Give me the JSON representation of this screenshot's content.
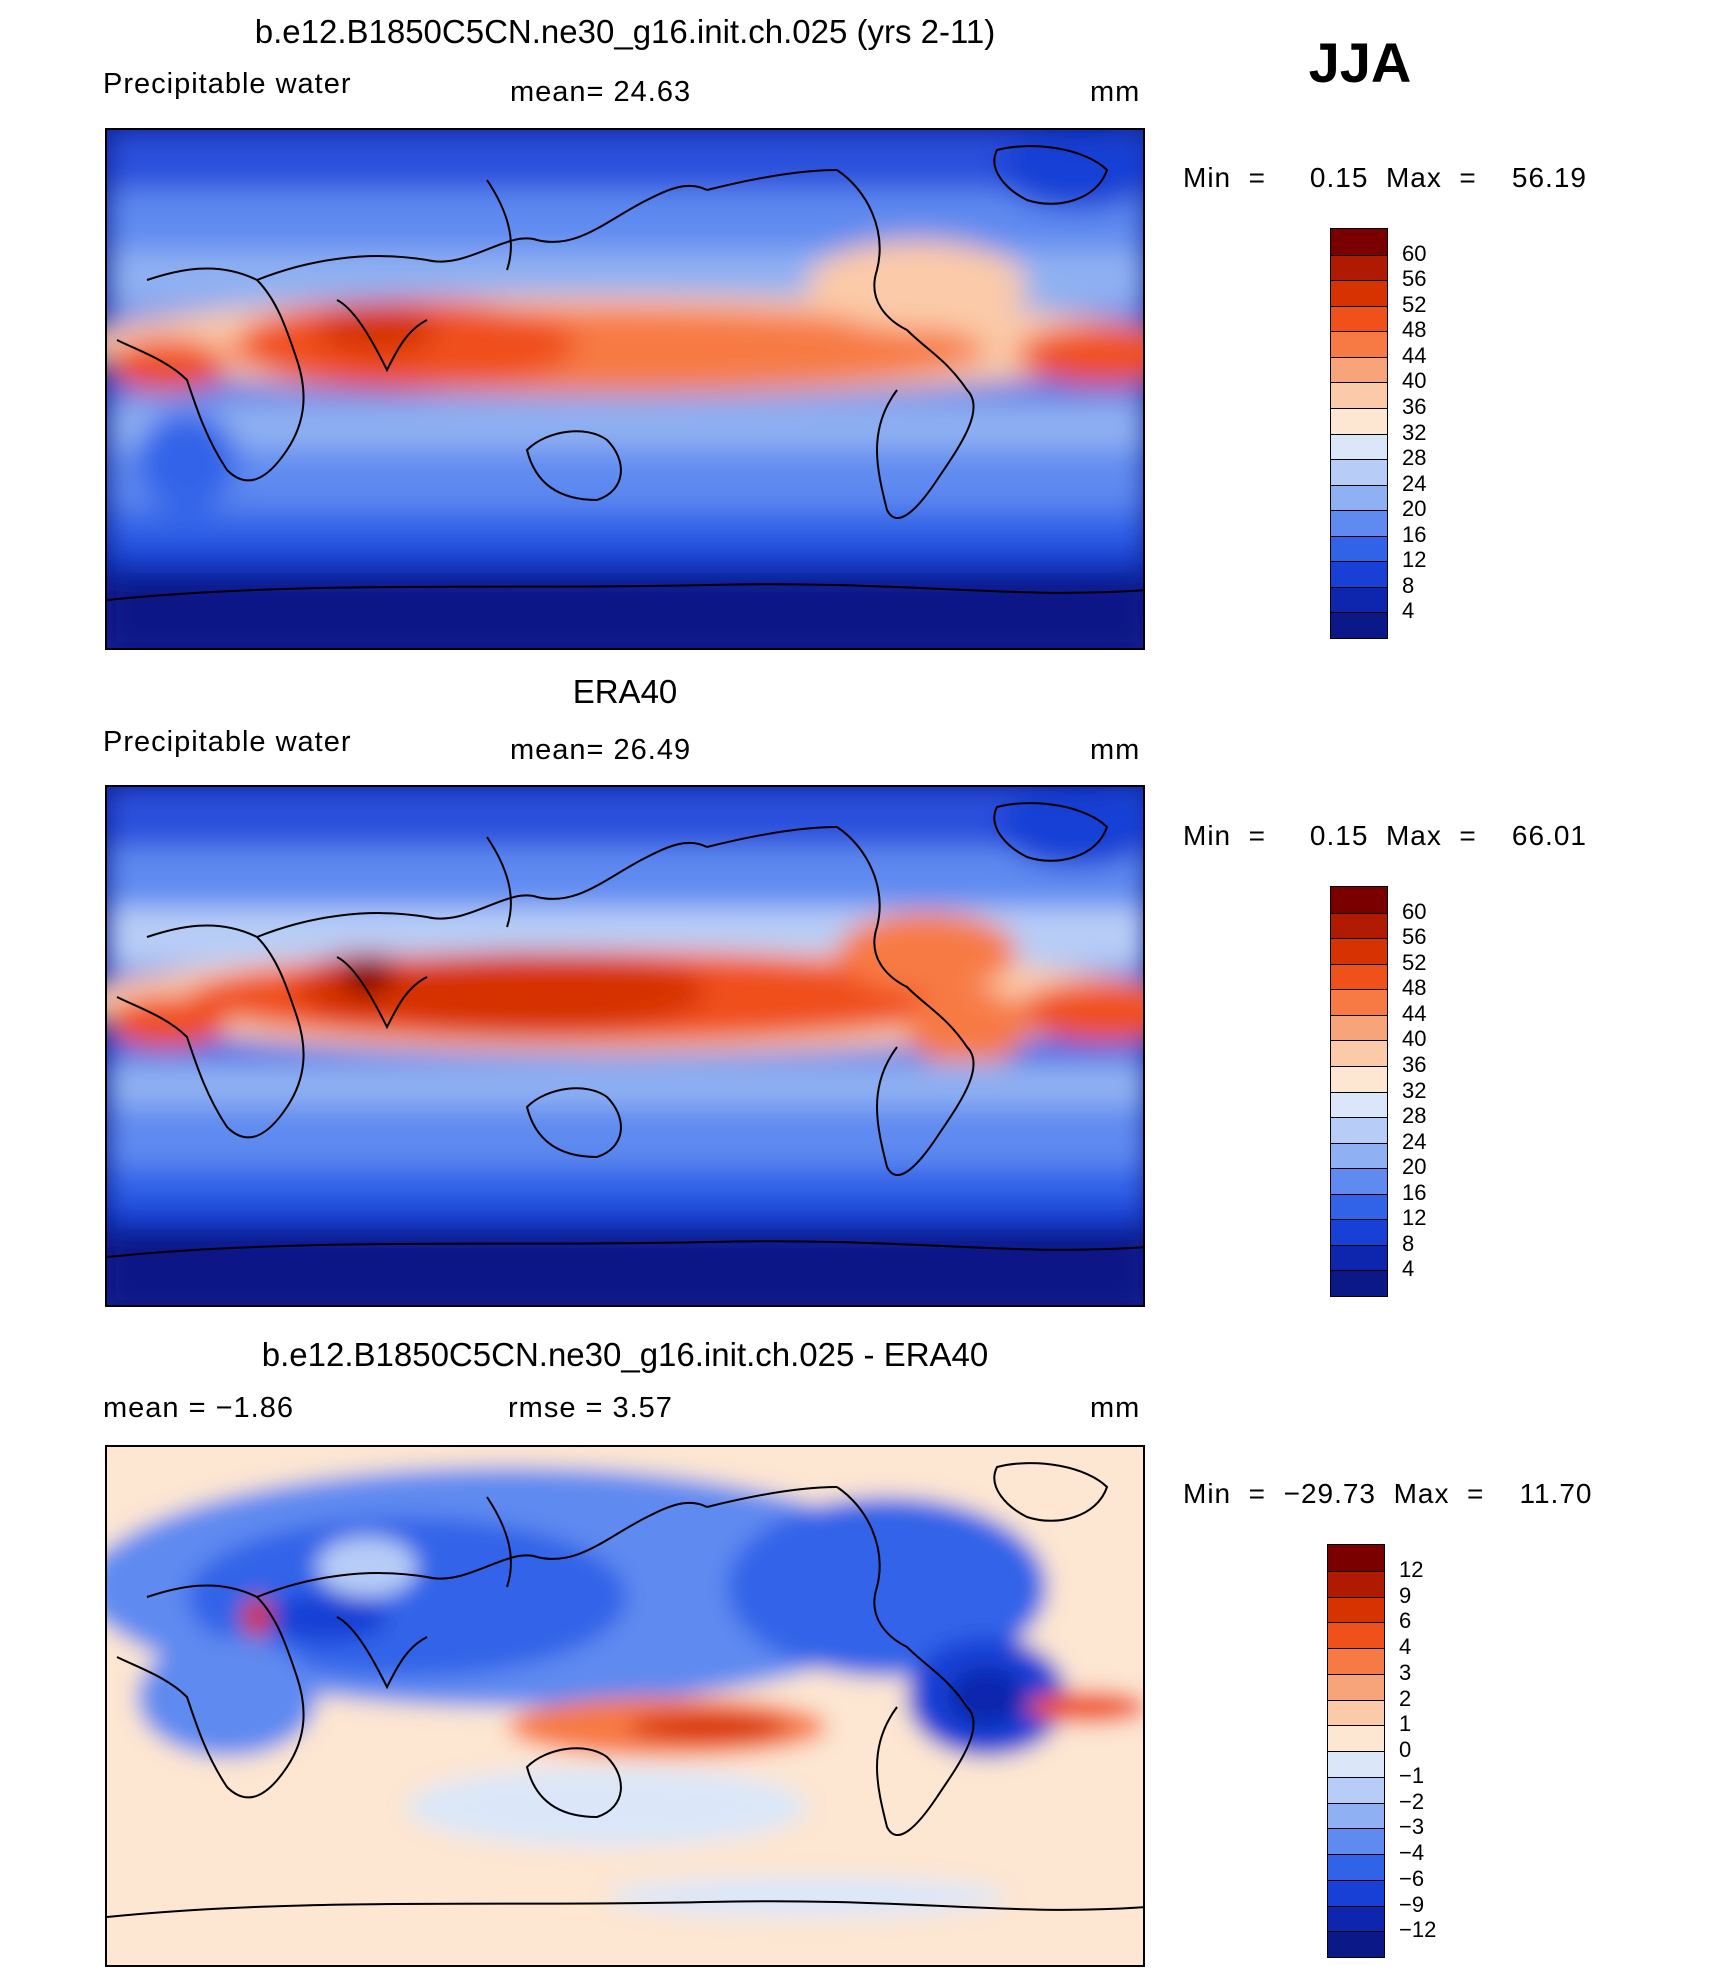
{
  "season": "JJA",
  "panels": [
    {
      "id": "model",
      "title": "b.e12.B1850C5CN.ne30_g16.init.ch.025 (yrs 2-11)",
      "left_label": "Precipitable  water",
      "center_label": "mean=   24.63",
      "units": "mm",
      "minmax": "Min  =     0.15  Max  =    56.19"
    },
    {
      "id": "obs",
      "title": "ERA40",
      "left_label": "Precipitable  water",
      "center_label": "mean=   26.49",
      "units": "mm",
      "minmax": "Min  =     0.15  Max  =    66.01"
    },
    {
      "id": "diff",
      "title": "b.e12.B1850C5CN.ne30_g16.init.ch.025 - ERA40",
      "left_label": "mean  =    −1.86",
      "center_label": "rmse  =     3.57",
      "units": "mm",
      "minmax": "Min  =  −29.73  Max  =    11.70"
    }
  ],
  "colorbars": {
    "field": {
      "labels": [
        "60",
        "56",
        "52",
        "48",
        "44",
        "40",
        "36",
        "32",
        "28",
        "24",
        "20",
        "16",
        "12",
        "8",
        "4"
      ],
      "colors": [
        "#7a0000",
        "#b01a00",
        "#d63300",
        "#f0501a",
        "#f77a45",
        "#f7a47a",
        "#fbcaa8",
        "#fde6d2",
        "#dbe7f9",
        "#b7cdf7",
        "#8fb0f2",
        "#5f8af0",
        "#3163e8",
        "#1940d6",
        "#0d26ad",
        "#0a1987"
      ]
    },
    "diff": {
      "labels": [
        "12",
        "9",
        "6",
        "4",
        "3",
        "2",
        "1",
        "0",
        "−1",
        "−2",
        "−3",
        "−4",
        "−6",
        "−9",
        "−12"
      ],
      "colors": [
        "#7a0000",
        "#b01a00",
        "#d63300",
        "#f0501a",
        "#f77a45",
        "#f7a47a",
        "#fbcaa8",
        "#fde6d2",
        "#dbe7f9",
        "#b7cdf7",
        "#8fb0f2",
        "#5f8af0",
        "#3163e8",
        "#1940d6",
        "#0d26ad",
        "#0a1987"
      ]
    }
  }
}
